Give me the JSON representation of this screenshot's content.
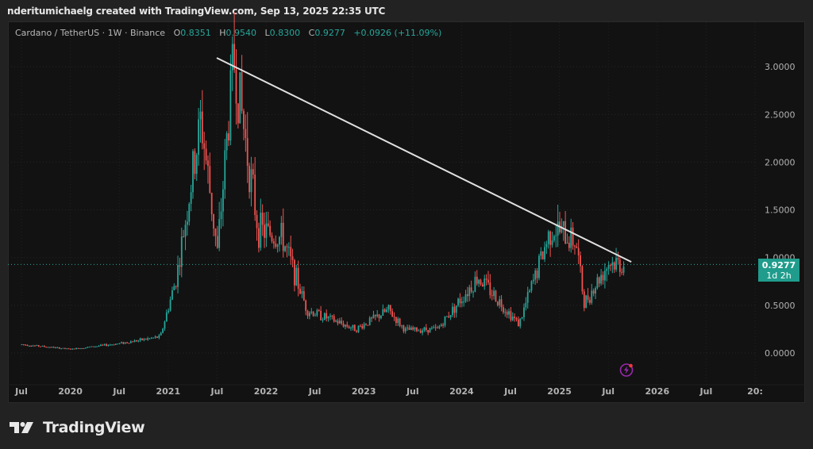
{
  "header": {
    "credit": "nderitumichaelg created with TradingView.com, Sep 13, 2025 22:35 UTC"
  },
  "legend": {
    "symbol": "Cardano / TetherUS · 1W · Binance",
    "open_label": "O",
    "open": "0.8351",
    "high_label": "H",
    "high": "0.9540",
    "low_label": "L",
    "low": "0.8300",
    "close_label": "C",
    "close": "0.9277",
    "change": "+0.0926 (+11.09%)"
  },
  "price_tag": {
    "price": "0.9277",
    "countdown": "1d 2h"
  },
  "logo": {
    "text": "TradingView"
  },
  "colors": {
    "up": "#26a69a",
    "down": "#ef5350",
    "background": "#121212",
    "frame": "#222222",
    "trendline": "#e0e0e0",
    "price_line": "#26a69a",
    "alert_icon": "#9c27b0"
  },
  "icons": {
    "alert": "lightning-bolt-alert-icon",
    "logo": "tradingview-logo-icon"
  },
  "chart_data": {
    "type": "candlestick",
    "title": "Cardano / TetherUS · 1W · Binance",
    "interval": "1W",
    "xlabel": "",
    "ylabel": "",
    "y_ticks": [
      "3.0000",
      "2.5000",
      "2.0000",
      "1.5000",
      "1.0000",
      "0.5000",
      "0.0000"
    ],
    "ylim": [
      -0.3,
      3.5
    ],
    "x_ticks": [
      "Jul",
      "2020",
      "Jul",
      "2021",
      "Jul",
      "2022",
      "Jul",
      "2023",
      "Jul",
      "2024",
      "Jul",
      "2025",
      "Jul",
      "2026",
      "Jul",
      "20:"
    ],
    "grid": true,
    "last_price": 0.9277,
    "last_bar": {
      "open": 0.8351,
      "high": 0.954,
      "low": 0.83,
      "close": 0.9277,
      "change": 0.0926,
      "change_pct": 11.09
    },
    "trendline": {
      "start": {
        "date": "2021-08",
        "price": 3.1
      },
      "end": {
        "date": "2025-09",
        "price": 0.93
      }
    },
    "key_points": [
      {
        "date": "2019-07",
        "price": 0.09
      },
      {
        "date": "2020-01",
        "price": 0.04
      },
      {
        "date": "2020-07",
        "price": 0.1
      },
      {
        "date": "2020-12",
        "price": 0.17
      },
      {
        "date": "2021-02",
        "price": 0.8
      },
      {
        "date": "2021-05",
        "price": 2.45
      },
      {
        "date": "2021-07",
        "price": 1.05
      },
      {
        "date": "2021-09",
        "price": 3.1
      },
      {
        "date": "2021-12",
        "price": 1.3
      },
      {
        "date": "2022-03",
        "price": 1.2
      },
      {
        "date": "2022-06",
        "price": 0.45
      },
      {
        "date": "2022-12",
        "price": 0.25
      },
      {
        "date": "2023-04",
        "price": 0.45
      },
      {
        "date": "2023-06",
        "price": 0.24
      },
      {
        "date": "2023-10",
        "price": 0.25
      },
      {
        "date": "2024-03",
        "price": 0.8
      },
      {
        "date": "2024-08",
        "price": 0.3
      },
      {
        "date": "2024-12",
        "price": 1.32
      },
      {
        "date": "2025-03",
        "price": 1.17
      },
      {
        "date": "2025-04",
        "price": 0.52
      },
      {
        "date": "2025-07",
        "price": 0.95
      },
      {
        "date": "2025-09",
        "price": 0.9277
      }
    ]
  }
}
